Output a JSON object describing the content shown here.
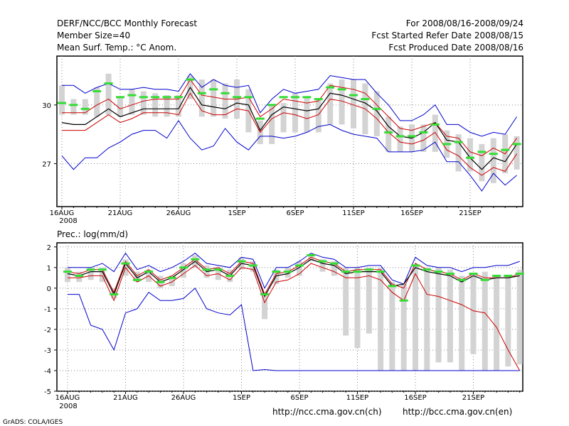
{
  "header": {
    "line1_left": "DERF/NCC/BCC Monthly Forecast",
    "line2_left": "Member Size=40",
    "line3_left": "Mean Surf. Temp.: °C Anom.",
    "line1_right": "For 2008/08/16-2008/09/24",
    "line2_right": "Fcst Started Refer Date 2008/08/15",
    "line3_right": "Fcst Produced Date 2008/08/16"
  },
  "footer": {
    "url_ch": "http://ncc.cma.gov.cn(ch)",
    "url_en": "http://bcc.cma.gov.cn(en)",
    "credit": "GrADS: COLA/IGES"
  },
  "colors": {
    "ensemble_max_min": "#0000cc",
    "spread_band": "#cc0000",
    "ensemble_mean": "#000000",
    "box": "#d3d3d3",
    "marker": "#33dd33",
    "grid": "#888888"
  },
  "chart_data": [
    {
      "type": "line",
      "title": "Mean Surf. Temp.: °C Anom.",
      "x_tick_labels": [
        "16AUG",
        "21AUG",
        "26AUG",
        "1SEP",
        "6SEP",
        "11SEP",
        "16SEP",
        "21SEP"
      ],
      "x_year_label": "2008",
      "y_tick_labels": [
        "27",
        "30"
      ],
      "y_ticks": [
        27,
        30
      ],
      "ylim": [
        24.8,
        32.5
      ],
      "x_days": 40,
      "series": [
        {
          "name": "max",
          "color": "#0000cc",
          "values": [
            31.0,
            31.0,
            30.6,
            30.9,
            31.1,
            30.8,
            30.8,
            30.9,
            30.8,
            30.8,
            30.7,
            31.6,
            30.9,
            31.3,
            31.0,
            30.9,
            31.0,
            29.6,
            30.3,
            30.8,
            30.6,
            30.7,
            30.8,
            31.5,
            31.4,
            31.3,
            31.3,
            30.6,
            30.0,
            29.2,
            29.2,
            29.5,
            30.0,
            29.0,
            29.0,
            28.6,
            28.4,
            28.6,
            28.5,
            29.4
          ]
        },
        {
          "name": "upper",
          "color": "#cc0000",
          "values": [
            29.6,
            29.6,
            29.6,
            30.0,
            30.3,
            29.8,
            30.0,
            30.2,
            30.3,
            30.3,
            30.3,
            31.3,
            30.5,
            30.4,
            30.3,
            30.3,
            30.4,
            29.4,
            29.8,
            30.3,
            30.2,
            30.1,
            30.2,
            31.0,
            30.9,
            30.8,
            30.6,
            30.0,
            29.4,
            28.8,
            28.7,
            28.9,
            29.1,
            28.4,
            28.3,
            27.6,
            27.4,
            27.8,
            27.5,
            28.3
          ]
        },
        {
          "name": "mean",
          "color": "#000000",
          "values": [
            29.1,
            29.0,
            29.0,
            29.4,
            29.8,
            29.4,
            29.6,
            29.8,
            29.8,
            29.8,
            29.8,
            30.9,
            30.0,
            29.9,
            29.8,
            30.1,
            30.0,
            28.7,
            29.5,
            29.9,
            29.8,
            29.7,
            29.8,
            30.6,
            30.5,
            30.3,
            30.1,
            29.7,
            28.9,
            28.4,
            28.3,
            28.6,
            29.1,
            28.2,
            28.1,
            27.3,
            26.7,
            27.3,
            27.1,
            28.0
          ]
        },
        {
          "name": "lower",
          "color": "#cc0000",
          "values": [
            28.7,
            28.7,
            28.7,
            29.1,
            29.5,
            29.1,
            29.3,
            29.6,
            29.6,
            29.6,
            29.5,
            30.6,
            29.7,
            29.5,
            29.5,
            29.8,
            29.7,
            28.6,
            29.3,
            29.6,
            29.5,
            29.3,
            29.5,
            30.3,
            30.2,
            30.0,
            29.8,
            29.3,
            28.6,
            28.1,
            28.0,
            28.2,
            28.6,
            27.7,
            27.4,
            26.8,
            26.4,
            26.8,
            26.6,
            27.5
          ]
        },
        {
          "name": "min",
          "color": "#0000cc",
          "values": [
            27.4,
            26.7,
            27.3,
            27.3,
            27.8,
            28.1,
            28.5,
            28.7,
            28.7,
            28.3,
            29.2,
            28.3,
            27.7,
            27.9,
            28.8,
            28.1,
            27.7,
            28.4,
            28.4,
            28.3,
            28.4,
            28.6,
            28.9,
            29.0,
            28.7,
            28.5,
            28.4,
            28.3,
            27.6,
            27.6,
            27.6,
            27.7,
            28.1,
            27.1,
            27.1,
            26.4,
            25.6,
            26.5,
            25.9,
            26.4
          ]
        }
      ],
      "boxes": [
        [
          29.5,
          31.0
        ],
        [
          29.5,
          30.3
        ],
        [
          29.5,
          30.3
        ],
        [
          29.4,
          30.9
        ],
        [
          29.5,
          31.6
        ],
        [
          29.4,
          30.4
        ],
        [
          29.5,
          30.8
        ],
        [
          29.5,
          30.7
        ],
        [
          29.4,
          30.6
        ],
        [
          29.4,
          30.5
        ],
        [
          29.4,
          30.5
        ],
        [
          30.3,
          31.5
        ],
        [
          29.4,
          31.3
        ],
        [
          29.4,
          31.3
        ],
        [
          29.3,
          31.1
        ],
        [
          29.3,
          31.3
        ],
        [
          28.6,
          30.8
        ],
        [
          28.0,
          29.2
        ],
        [
          28.0,
          30.0
        ],
        [
          28.6,
          30.1
        ],
        [
          28.6,
          30.6
        ],
        [
          28.6,
          30.4
        ],
        [
          28.6,
          30.3
        ],
        [
          29.0,
          31.1
        ],
        [
          29.0,
          31.3
        ],
        [
          28.8,
          31.3
        ],
        [
          28.5,
          31.1
        ],
        [
          28.4,
          30.7
        ],
        [
          27.6,
          29.4
        ],
        [
          27.6,
          28.9
        ],
        [
          27.6,
          29.0
        ],
        [
          27.6,
          29.0
        ],
        [
          27.6,
          29.5
        ],
        [
          27.3,
          28.7
        ],
        [
          26.6,
          28.5
        ],
        [
          26.6,
          28.3
        ],
        [
          26.1,
          28.0
        ],
        [
          26.0,
          28.3
        ],
        [
          26.5,
          28.5
        ],
        [
          26.7,
          28.4
        ]
      ],
      "markers": [
        30.1,
        30.0,
        29.8,
        30.7,
        31.1,
        30.4,
        30.5,
        30.4,
        30.4,
        30.4,
        30.4,
        31.3,
        30.6,
        30.8,
        30.6,
        30.4,
        30.4,
        29.3,
        30.0,
        30.4,
        30.4,
        30.4,
        30.3,
        30.9,
        30.8,
        30.5,
        30.3,
        29.8,
        28.6,
        28.4,
        28.4,
        28.6,
        29.0,
        28.0,
        28.1,
        27.3,
        27.6,
        27.5,
        27.7,
        28.0
      ]
    },
    {
      "type": "line",
      "title": "Prec.: log(mm/d)",
      "x_tick_labels": [
        "16AUG",
        "21AUG",
        "26AUG",
        "1SEP",
        "6SEP",
        "11SEP",
        "16SEP",
        "21SEP"
      ],
      "x_year_label": "2008",
      "y_tick_labels": [
        "2",
        "1",
        "0",
        "-1",
        "-2",
        "-3",
        "-4",
        "-5"
      ],
      "y_ticks": [
        2,
        1,
        0,
        -1,
        -2,
        -3,
        -4,
        -5
      ],
      "ylim": [
        -5,
        2.2
      ],
      "x_days": 40,
      "series": [
        {
          "name": "max",
          "color": "#0000cc",
          "values": [
            1.0,
            1.0,
            1.0,
            1.2,
            0.8,
            1.7,
            0.9,
            1.1,
            0.8,
            1.0,
            1.3,
            1.7,
            1.2,
            1.1,
            1.0,
            1.5,
            1.4,
            0.0,
            1.0,
            1.0,
            1.3,
            1.7,
            1.5,
            1.4,
            1.0,
            1.0,
            1.1,
            1.1,
            0.4,
            0.2,
            1.5,
            1.1,
            1.0,
            1.0,
            0.8,
            1.0,
            1.0,
            1.1,
            1.1,
            1.3
          ]
        },
        {
          "name": "upper",
          "color": "#cc0000",
          "values": [
            0.8,
            0.7,
            0.9,
            0.9,
            -0.2,
            1.3,
            0.6,
            0.9,
            0.4,
            0.6,
            1.0,
            1.4,
            0.9,
            1.0,
            0.7,
            1.3,
            1.2,
            -0.3,
            0.7,
            0.8,
            1.1,
            1.5,
            1.3,
            1.2,
            0.8,
            0.9,
            0.9,
            0.9,
            0.2,
            0.0,
            1.2,
            0.9,
            0.8,
            0.7,
            0.4,
            0.7,
            0.5,
            0.5,
            0.5,
            0.7
          ]
        },
        {
          "name": "mean",
          "color": "#000000",
          "values": [
            0.7,
            0.6,
            0.8,
            0.8,
            -0.3,
            1.2,
            0.5,
            0.8,
            0.3,
            0.5,
            0.9,
            1.3,
            0.8,
            0.9,
            0.6,
            1.2,
            1.1,
            -0.4,
            0.6,
            0.7,
            1.0,
            1.4,
            1.2,
            1.1,
            0.7,
            0.8,
            0.8,
            0.8,
            0.1,
            0.2,
            1.0,
            0.8,
            0.7,
            0.6,
            0.3,
            0.6,
            0.4,
            0.5,
            0.5,
            0.6
          ]
        },
        {
          "name": "lower",
          "color": "#cc0000",
          "values": [
            0.5,
            0.5,
            0.6,
            0.6,
            -0.6,
            1.0,
            0.3,
            0.6,
            0.1,
            0.3,
            0.7,
            1.1,
            0.6,
            0.7,
            0.4,
            1.0,
            0.9,
            -0.7,
            0.3,
            0.4,
            0.7,
            1.2,
            1.0,
            0.8,
            0.5,
            0.5,
            0.6,
            0.4,
            -0.2,
            -0.6,
            0.7,
            -0.3,
            -0.4,
            -0.6,
            -0.8,
            -1.1,
            -1.2,
            -1.9,
            -3.0,
            -4.0
          ]
        },
        {
          "name": "min",
          "color": "#0000cc",
          "values": [
            -0.3,
            -0.3,
            -1.8,
            -2.0,
            -3.0,
            -1.2,
            -1.0,
            -0.2,
            -0.6,
            -0.6,
            -0.5,
            0.0,
            -1.0,
            -1.2,
            -1.3,
            -0.8,
            -4.0,
            -3.95,
            -4.0,
            -4.0,
            -4.0,
            -4.0,
            -4.0,
            -4.0,
            -4.0,
            -4.0,
            -4.0,
            -4.0,
            -4.0,
            -4.0,
            -4.0,
            -4.0,
            -4.0,
            -4.0,
            -4.0,
            -4.0,
            -4.0,
            -4.0,
            -4.0,
            -4.0
          ]
        }
      ],
      "boxes": [
        [
          0.3,
          1.0
        ],
        [
          0.3,
          0.8
        ],
        [
          0.4,
          1.0
        ],
        [
          0.3,
          1.0
        ],
        [
          -0.5,
          0.0
        ],
        [
          0.6,
          1.4
        ],
        [
          0.3,
          0.8
        ],
        [
          0.3,
          0.9
        ],
        [
          0.0,
          0.6
        ],
        [
          0.1,
          0.6
        ],
        [
          0.5,
          1.2
        ],
        [
          1.0,
          1.6
        ],
        [
          0.5,
          1.1
        ],
        [
          0.4,
          1.0
        ],
        [
          0.3,
          0.9
        ],
        [
          0.9,
          1.5
        ],
        [
          0.8,
          1.3
        ],
        [
          -1.5,
          -0.2
        ],
        [
          0.2,
          0.9
        ],
        [
          0.5,
          1.0
        ],
        [
          0.6,
          1.3
        ],
        [
          1.3,
          1.6
        ],
        [
          0.8,
          1.4
        ],
        [
          0.6,
          1.3
        ],
        [
          -2.3,
          1.0
        ],
        [
          -2.9,
          1.0
        ],
        [
          -2.2,
          1.0
        ],
        [
          -4.0,
          1.0
        ],
        [
          -4.0,
          0.3
        ],
        [
          -4.0,
          0.2
        ],
        [
          -4.0,
          1.1
        ],
        [
          -4.0,
          1.0
        ],
        [
          -3.6,
          1.0
        ],
        [
          -3.6,
          0.9
        ],
        [
          -4.0,
          0.6
        ],
        [
          -3.2,
          0.7
        ],
        [
          -4.0,
          0.8
        ],
        [
          -4.0,
          0.6
        ],
        [
          -3.8,
          0.6
        ],
        [
          -3.7,
          0.9
        ]
      ],
      "markers": [
        0.8,
        0.6,
        0.9,
        0.9,
        -0.3,
        1.2,
        0.4,
        0.8,
        0.3,
        0.5,
        1.0,
        1.4,
        0.9,
        0.9,
        0.6,
        1.3,
        1.1,
        -0.3,
        0.8,
        0.8,
        1.1,
        1.6,
        1.3,
        1.2,
        0.8,
        0.8,
        0.9,
        0.8,
        0.1,
        -0.6,
        1.1,
        0.9,
        0.8,
        0.7,
        0.4,
        0.7,
        0.4,
        0.6,
        0.6,
        0.7
      ]
    }
  ]
}
